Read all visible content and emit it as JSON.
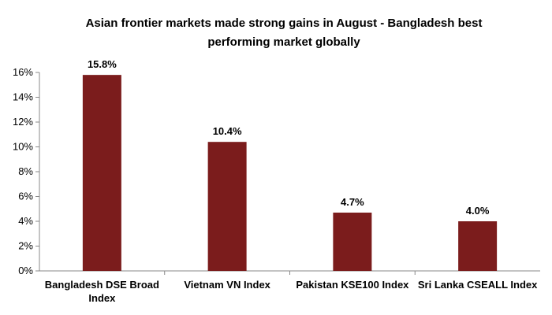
{
  "chart_data": {
    "type": "bar",
    "title_lines": [
      "Asian frontier markets made strong gains in August - Bangladesh best",
      "performing market globally"
    ],
    "categories": [
      [
        "Bangladesh DSE Broad",
        "Index"
      ],
      [
        "Vietnam VN Index"
      ],
      [
        "Pakistan KSE100 Index"
      ],
      [
        "Sri Lanka CSEALL Index"
      ]
    ],
    "values": [
      15.8,
      10.4,
      4.7,
      4.0
    ],
    "data_labels": [
      "15.8%",
      "10.4%",
      "4.7%",
      "4.0%"
    ],
    "ylim": [
      0,
      16
    ],
    "yticks": [
      0,
      2,
      4,
      6,
      8,
      10,
      12,
      14,
      16
    ],
    "ytick_labels": [
      "0%",
      "2%",
      "4%",
      "6%",
      "8%",
      "10%",
      "12%",
      "14%",
      "16%"
    ],
    "bar_color": "#7b1c1c",
    "grid": false,
    "legend": "none"
  }
}
